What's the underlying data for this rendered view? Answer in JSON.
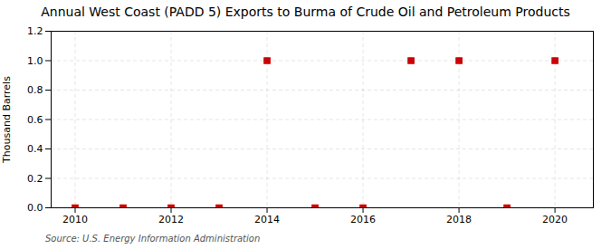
{
  "chart_data": {
    "type": "scatter",
    "title": "Annual West Coast (PADD 5) Exports to Burma of Crude Oil and Petroleum Products",
    "ylabel": "Thousand Barrels",
    "source": "Source: U.S. Energy Information Administration",
    "x": [
      2010,
      2011,
      2012,
      2013,
      2014,
      2015,
      2016,
      2017,
      2018,
      2019,
      2020
    ],
    "values": [
      0,
      0,
      0,
      0,
      1,
      0,
      0,
      1,
      1,
      0,
      1
    ],
    "color": "#cc0000",
    "marker": "square",
    "xlim": [
      2009.5,
      2020.8
    ],
    "ylim": [
      0,
      1.2
    ],
    "xticks": [
      2010,
      2012,
      2014,
      2016,
      2018,
      2020
    ],
    "yticks": [
      {
        "value": 0,
        "label": "0.0"
      },
      0.2,
      0.4,
      0.6,
      0.8,
      {
        "value": 1,
        "label": "1.0"
      },
      1.2
    ],
    "grid": true
  }
}
